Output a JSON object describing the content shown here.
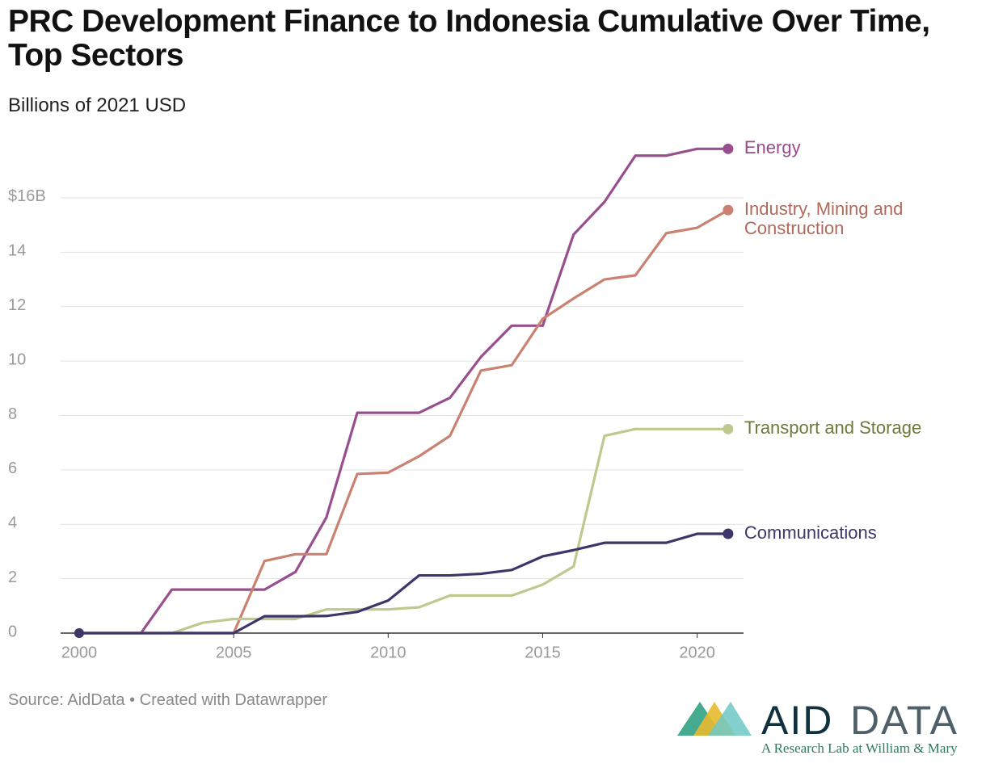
{
  "chart_data": {
    "type": "line",
    "title": "PRC Development Finance to Indonesia Cumulative Over Time, Top Sectors",
    "subtitle": "Billions of 2021 USD",
    "source": "Source: AidData • Created with Datawrapper",
    "x": [
      2000,
      2001,
      2002,
      2003,
      2004,
      2005,
      2006,
      2007,
      2008,
      2009,
      2010,
      2011,
      2012,
      2013,
      2014,
      2015,
      2016,
      2017,
      2018,
      2019,
      2020,
      2021
    ],
    "series": [
      {
        "name": "Energy",
        "color": "#984f8e",
        "label_color": "#984a8c",
        "values": [
          0,
          0,
          0,
          1.6,
          1.6,
          1.6,
          1.6,
          2.25,
          4.25,
          8.1,
          8.1,
          8.1,
          8.65,
          10.15,
          11.3,
          11.3,
          14.65,
          15.85,
          17.55,
          17.55,
          17.8,
          17.8
        ]
      },
      {
        "name": "Industry, Mining and Construction",
        "color": "#c98272",
        "label_color": "#b0695b",
        "values": [
          0,
          0,
          0,
          0,
          0,
          0,
          2.65,
          2.9,
          2.9,
          5.85,
          5.9,
          6.5,
          7.25,
          9.65,
          9.85,
          11.55,
          12.3,
          13.0,
          13.15,
          14.7,
          14.9,
          15.55
        ]
      },
      {
        "name": "Transport and Storage",
        "color": "#bfc88f",
        "label_color": "#6d7a3d",
        "values": [
          0,
          0,
          0,
          0,
          0.38,
          0.52,
          0.52,
          0.52,
          0.87,
          0.87,
          0.87,
          0.95,
          1.38,
          1.38,
          1.38,
          1.78,
          2.45,
          7.25,
          7.5,
          7.5,
          7.5,
          7.5
        ]
      },
      {
        "name": "Communications",
        "color": "#3d3668",
        "label_color": "#3d3668",
        "values": [
          0,
          0,
          0,
          0,
          0,
          0,
          0.62,
          0.62,
          0.63,
          0.78,
          1.2,
          2.12,
          2.12,
          2.18,
          2.32,
          2.82,
          3.05,
          3.32,
          3.32,
          3.32,
          3.65,
          3.65
        ]
      }
    ],
    "xlim": [
      1999.4,
      2021.5
    ],
    "xticks": [
      2000,
      2005,
      2010,
      2015,
      2020
    ],
    "ylim": [
      0,
      18
    ],
    "yticks": [
      0,
      2,
      4,
      6,
      8,
      10,
      12,
      14,
      {
        "value": 16,
        "label": "$16B"
      }
    ],
    "grid": true
  },
  "footer": {
    "logo_left": "AID",
    "logo_right": "DATA",
    "tagline": "A Research Lab at William & Mary"
  }
}
